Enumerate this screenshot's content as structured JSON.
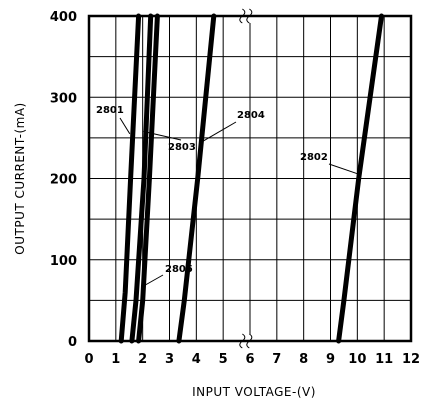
{
  "chart_data": {
    "type": "line",
    "xlabel": "INPUT VOLTAGE-(V)",
    "ylabel": "OUTPUT CURRENT-(mA)",
    "xlim": [
      0,
      12
    ],
    "ylim": [
      0,
      400
    ],
    "xticks": [
      0,
      1,
      2,
      3,
      4,
      5,
      6,
      7,
      8,
      9,
      10,
      11,
      12
    ],
    "yticks": [
      0,
      100,
      200,
      300,
      400
    ],
    "x_tick_labels": [
      "0",
      "1",
      "2",
      "3",
      "4",
      "5",
      "6",
      "7",
      "8",
      "9",
      "10",
      "11",
      "12"
    ],
    "y_tick_labels": [
      "0",
      "100",
      "200",
      "300",
      "400"
    ],
    "grid": true,
    "series": [
      {
        "name": "2801",
        "points": [
          [
            1.2,
            0
          ],
          [
            1.35,
            60
          ],
          [
            1.55,
            200
          ],
          [
            1.85,
            400
          ]
        ]
      },
      {
        "name": "2803",
        "points": [
          [
            1.6,
            0
          ],
          [
            1.75,
            50
          ],
          [
            2.05,
            200
          ],
          [
            2.3,
            400
          ]
        ]
      },
      {
        "name": "2805",
        "points": [
          [
            1.85,
            0
          ],
          [
            2.0,
            50
          ],
          [
            2.25,
            200
          ],
          [
            2.55,
            400
          ]
        ]
      },
      {
        "name": "2804",
        "points": [
          [
            3.35,
            0
          ],
          [
            3.55,
            50
          ],
          [
            4.05,
            200
          ],
          [
            4.65,
            400
          ]
        ]
      },
      {
        "name": "2802",
        "points": [
          [
            9.3,
            0
          ],
          [
            9.5,
            50
          ],
          [
            10.05,
            200
          ],
          [
            10.9,
            400
          ]
        ]
      }
    ],
    "labels": [
      {
        "text": "2801",
        "series": "2801"
      },
      {
        "text": "2803",
        "series": "2803"
      },
      {
        "text": "2805",
        "series": "2805"
      },
      {
        "text": "2804",
        "series": "2804"
      },
      {
        "text": "2802",
        "series": "2802"
      }
    ]
  }
}
